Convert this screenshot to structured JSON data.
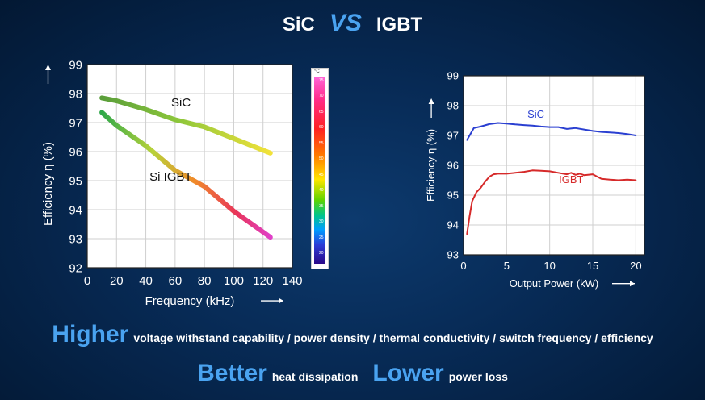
{
  "title": {
    "left": "SiC",
    "vs": "VS",
    "right": "IGBT"
  },
  "scale_bar": {
    "unit": "°C",
    "labels": [
      "75",
      "70",
      "65",
      "60",
      "55",
      "50",
      "45",
      "40",
      "35",
      "30",
      "25",
      "20"
    ],
    "gradient_colors": [
      "#ff66d9",
      "#ff2222",
      "#ff7a00",
      "#ffe600",
      "#5fd300",
      "#009cff",
      "#2a0a8a"
    ]
  },
  "chart_data": [
    {
      "type": "line",
      "xlabel": "Frequency (kHz)",
      "ylabel": "Efficiency η (%)",
      "xlim": [
        0,
        140
      ],
      "ylim": [
        92,
        99
      ],
      "xticks": [
        0,
        20,
        40,
        60,
        80,
        100,
        120,
        140
      ],
      "yticks": [
        92,
        93,
        94,
        95,
        96,
        97,
        98,
        99
      ],
      "series": [
        {
          "name": "SiC",
          "x": [
            10,
            20,
            40,
            60,
            80,
            100,
            125
          ],
          "y": [
            97.85,
            97.75,
            97.45,
            97.1,
            96.85,
            96.45,
            95.95
          ]
        },
        {
          "name": "Si IGBT",
          "x": [
            10,
            20,
            40,
            60,
            80,
            100,
            125
          ],
          "y": [
            97.35,
            96.9,
            96.2,
            95.35,
            94.8,
            93.95,
            93.05
          ]
        }
      ]
    },
    {
      "type": "line",
      "xlabel": "Output Power (kW)",
      "ylabel": "Efficiency η (%)",
      "xlim": [
        0,
        21
      ],
      "ylim": [
        93,
        99
      ],
      "xticks": [
        0,
        5,
        10,
        15,
        20
      ],
      "yticks": [
        93,
        94,
        95,
        96,
        97,
        98,
        99
      ],
      "series": [
        {
          "name": "SiC",
          "color": "#2a3fd1",
          "x": [
            0.4,
            0.8,
            1.2,
            2,
            3,
            4,
            5,
            6,
            7,
            8,
            9,
            10,
            11,
            12,
            13,
            14,
            15,
            16,
            17,
            18,
            19,
            20
          ],
          "y": [
            96.85,
            97.05,
            97.25,
            97.3,
            97.38,
            97.42,
            97.4,
            97.37,
            97.35,
            97.33,
            97.3,
            97.28,
            97.28,
            97.22,
            97.25,
            97.2,
            97.15,
            97.12,
            97.1,
            97.08,
            97.05,
            97.0
          ]
        },
        {
          "name": "IGBT",
          "color": "#d62a2a",
          "x": [
            0.4,
            0.7,
            1,
            1.5,
            2,
            2.5,
            3,
            3.5,
            4,
            5,
            6,
            7,
            8,
            9,
            10,
            11,
            12,
            12.5,
            13,
            13.5,
            14,
            15,
            16,
            17,
            18,
            19,
            20
          ],
          "y": [
            93.7,
            94.3,
            94.8,
            95.1,
            95.25,
            95.45,
            95.62,
            95.7,
            95.72,
            95.72,
            95.75,
            95.78,
            95.83,
            95.82,
            95.8,
            95.75,
            95.7,
            95.75,
            95.68,
            95.72,
            95.67,
            95.7,
            95.55,
            95.52,
            95.5,
            95.52,
            95.5
          ]
        }
      ]
    }
  ],
  "footer": {
    "line1": {
      "big": "Higher",
      "small": "voltage withstand capability / power density / thermal conductivity / switch frequency / efficiency"
    },
    "line2a": {
      "big": "Better",
      "small": "heat dissipation"
    },
    "line2b": {
      "big": "Lower",
      "small": "power loss"
    }
  }
}
